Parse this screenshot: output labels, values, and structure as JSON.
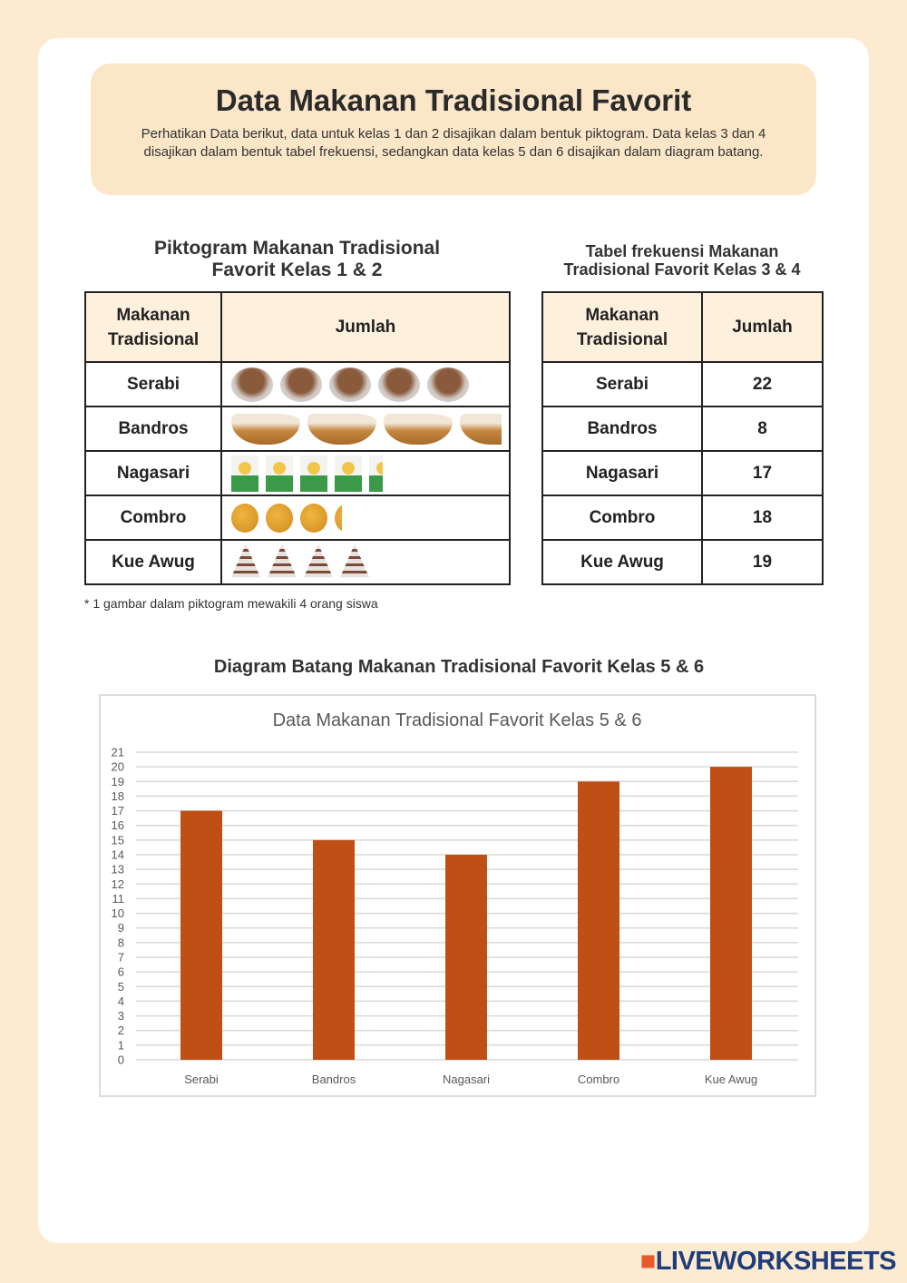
{
  "header": {
    "title": "Data Makanan Tradisional Favorit",
    "description": "Perhatikan Data berikut, data untuk kelas 1 dan 2 disajikan dalam bentuk piktogram.  Data kelas 3 dan 4 disajikan dalam bentuk tabel frekuensi, sedangkan data kelas 5 dan 6 disajikan dalam diagram batang."
  },
  "pictogram": {
    "title_line1": "Piktogram Makanan Tradisional",
    "title_line2": "Favorit Kelas 1 & 2",
    "col1": "Makanan Tradisional",
    "col2": "Jumlah",
    "rows": [
      {
        "name": "Serabi",
        "icons": 5,
        "icon": "serabi-icon"
      },
      {
        "name": "Bandros",
        "icons": 3.6,
        "icon": "bandros-icon"
      },
      {
        "name": "Nagasari",
        "icons": 4.5,
        "icon": "nagasari-icon"
      },
      {
        "name": "Combro",
        "icons": 3.25,
        "icon": "combro-icon"
      },
      {
        "name": "Kue Awug",
        "icons": 4,
        "icon": "kue-awug-icon"
      }
    ],
    "note": "* 1 gambar dalam piktogram mewakili 4 orang siswa"
  },
  "freq_table": {
    "title_line1": "Tabel frekuensi Makanan",
    "title_line2": "Tradisional Favorit Kelas 3 & 4",
    "col1": "Makanan Tradisional",
    "col2": "Jumlah",
    "rows": [
      {
        "name": "Serabi",
        "value": "22"
      },
      {
        "name": "Bandros",
        "value": "8"
      },
      {
        "name": "Nagasari",
        "value": "17"
      },
      {
        "name": "Combro",
        "value": "18"
      },
      {
        "name": "Kue Awug",
        "value": "19"
      }
    ]
  },
  "bar_section_title": "Diagram Batang Makanan Tradisional Favorit Kelas 5 & 6",
  "chart_data": {
    "type": "bar",
    "title": "Data Makanan Tradisional Favorit Kelas 5 & 6",
    "categories": [
      "Serabi",
      "Bandros",
      "Nagasari",
      "Combro",
      "Kue Awug"
    ],
    "values": [
      17,
      15,
      14,
      19,
      20
    ],
    "ylim": [
      0,
      21
    ],
    "yticks": [
      0,
      1,
      2,
      3,
      4,
      5,
      6,
      7,
      8,
      9,
      10,
      11,
      12,
      13,
      14,
      15,
      16,
      17,
      18,
      19,
      20,
      21
    ],
    "grid": true,
    "xlabel": "",
    "ylabel": "",
    "bar_color": "#c04f15"
  },
  "watermark": "LIVEWORKSHEETS"
}
